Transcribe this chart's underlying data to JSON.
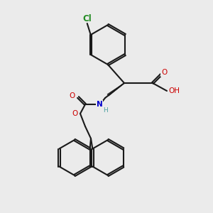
{
  "background_color": "#ebebeb",
  "bond_color": "#1a1a1a",
  "bond_width": 1.5,
  "atom_colors": {
    "O": "#cc0000",
    "N": "#0000cc",
    "Cl": "#228b22",
    "H_label": "#4aa0a0",
    "C": "#1a1a1a"
  },
  "font_size_atom": 7.5,
  "font_size_small": 6.5
}
